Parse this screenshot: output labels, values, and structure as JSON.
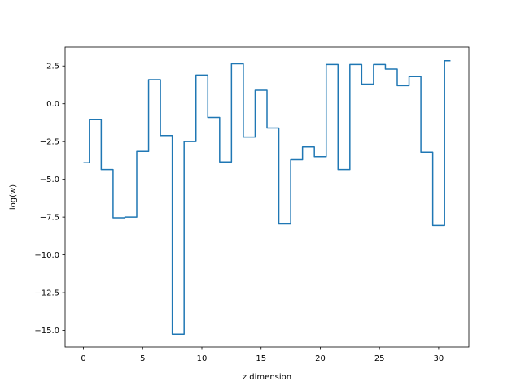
{
  "chart_data": {
    "type": "line",
    "drawstyle": "steps-mid",
    "title": "",
    "xlabel": "z dimension",
    "ylabel": "log(w)",
    "xlim": [
      -1.55,
      32.55
    ],
    "ylim": [
      -16.1,
      3.75
    ],
    "grid": false,
    "legend": "none",
    "line_color": "#1f77b4",
    "xticks": [
      0,
      5,
      10,
      15,
      20,
      25,
      30
    ],
    "xtick_labels": [
      "0",
      "5",
      "10",
      "15",
      "20",
      "25",
      "30"
    ],
    "yticks": [
      2.5,
      0.0,
      -2.5,
      -5.0,
      -7.5,
      -10.0,
      -12.5,
      -15.0
    ],
    "ytick_labels": [
      "2.5",
      "0.0",
      "−2.5",
      "−5.0",
      "−7.5",
      "−10.0",
      "−12.5",
      "−15.0"
    ],
    "x": [
      0,
      1,
      2,
      3,
      4,
      5,
      6,
      7,
      8,
      9,
      10,
      11,
      12,
      13,
      14,
      15,
      16,
      17,
      18,
      19,
      20,
      21,
      22,
      23,
      24,
      25,
      26,
      27,
      28,
      29,
      30,
      31
    ],
    "series": [
      {
        "values": [
          -3.9,
          -1.05,
          -4.35,
          -7.55,
          -7.5,
          -3.15,
          1.6,
          -2.1,
          -15.25,
          -2.5,
          1.9,
          -0.9,
          -3.85,
          2.65,
          -2.2,
          0.9,
          -1.6,
          -7.95,
          -3.7,
          -2.85,
          -3.5,
          2.6,
          -4.35,
          2.6,
          1.3,
          2.6,
          2.3,
          1.2,
          1.8,
          -3.2,
          -8.05,
          2.85
        ]
      }
    ]
  }
}
